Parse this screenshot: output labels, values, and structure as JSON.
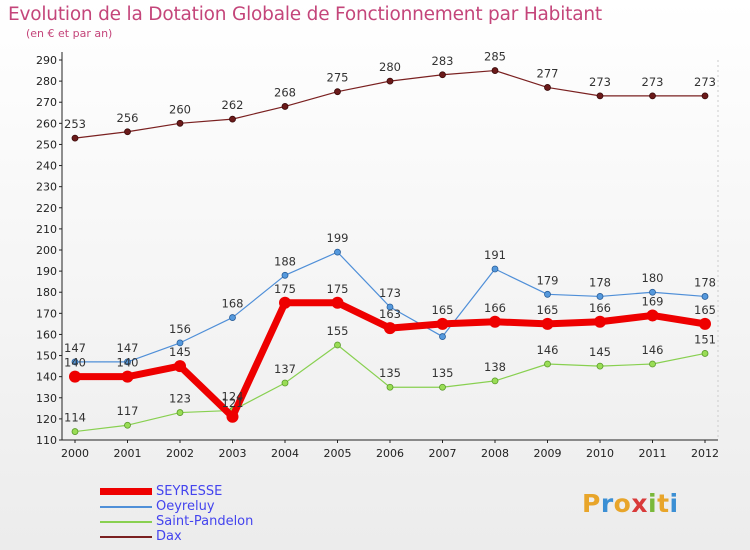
{
  "title": "Evolution de la Dotation Globale de Fonctionnement par Habitant",
  "subtitle": "(en € et par an)",
  "logo": {
    "text": "Proxiti",
    "letters": [
      "P",
      "r",
      "o",
      "x",
      "i",
      "t",
      "i"
    ],
    "colors": [
      "#e8a52a",
      "#3b8fd4",
      "#e8a52a",
      "#d93a3a",
      "#7ab83a",
      "#e8a52a",
      "#3b8fd4"
    ]
  },
  "chart_data": {
    "type": "line",
    "x": [
      "2000",
      "2001",
      "2002",
      "2003",
      "2004",
      "2005",
      "2006",
      "2007",
      "2008",
      "2009",
      "2010",
      "2011",
      "2012"
    ],
    "ylim": [
      110,
      290
    ],
    "yticks": [
      110,
      120,
      130,
      140,
      150,
      160,
      170,
      180,
      190,
      200,
      210,
      220,
      230,
      240,
      250,
      260,
      270,
      280,
      290
    ],
    "grid": false,
    "legend": "bottom-left",
    "series": [
      {
        "name": "SEYRESSE",
        "color": "#ee0000",
        "values": [
          140,
          140,
          145,
          121,
          175,
          175,
          163,
          165,
          166,
          165,
          166,
          169,
          165
        ]
      },
      {
        "name": "Oeyreluy",
        "color": "#4f8fd8",
        "values": [
          147,
          147,
          156,
          168,
          188,
          199,
          173,
          159,
          191,
          179,
          178,
          180,
          178
        ]
      },
      {
        "name": "Saint-Pandelon",
        "color": "#88d050",
        "values": [
          114,
          117,
          123,
          124,
          137,
          155,
          135,
          135,
          138,
          146,
          145,
          146,
          151
        ]
      },
      {
        "name": "Dax",
        "color": "#7a2020",
        "values": [
          253,
          256,
          260,
          262,
          268,
          275,
          280,
          283,
          285,
          277,
          273,
          273,
          273
        ]
      }
    ],
    "data_labels": [
      [
        "140",
        "140",
        "145",
        "121",
        "175",
        "175",
        "163",
        "165",
        "166",
        "165",
        "166",
        "169",
        "165"
      ],
      [
        "147",
        "147",
        "156",
        "168",
        "188",
        "199",
        "173",
        "",
        "191",
        "179",
        "178",
        "180",
        "178"
      ],
      [
        "114",
        "117",
        "123",
        "124",
        "137",
        "155",
        "135",
        "135",
        "138",
        "146",
        "145",
        "146",
        "151"
      ],
      [
        "253",
        "256",
        "260",
        "262",
        "268",
        "275",
        "280",
        "283",
        "285",
        "277",
        "273",
        "273",
        "273"
      ]
    ]
  }
}
